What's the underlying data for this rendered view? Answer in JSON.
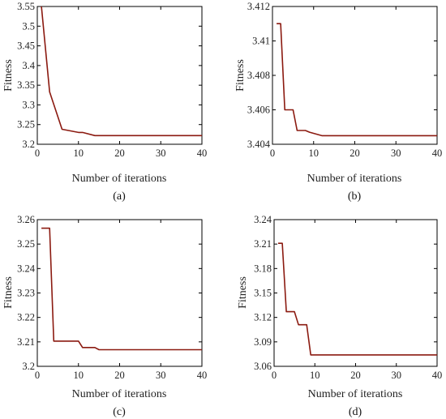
{
  "chart_data": [
    {
      "type": "line",
      "panel_label": "(a)",
      "xlabel": "Number of iterations",
      "ylabel": "Fitness",
      "xlim": [
        0,
        40
      ],
      "ylim": [
        3.2,
        3.55
      ],
      "xticks": [
        0,
        10,
        20,
        30,
        40
      ],
      "xtick_labels": [
        "0",
        "10",
        "20",
        "30",
        "40"
      ],
      "yticks": [
        3.2,
        3.25,
        3.3,
        3.35,
        3.4,
        3.45,
        3.5,
        3.55
      ],
      "ytick_labels": [
        "3.2",
        "3.25",
        "3.3",
        "3.35",
        "3.4",
        "3.45",
        "3.5",
        "3.55"
      ],
      "series": [
        {
          "color": "#8b1a10",
          "x": [
            1,
            3,
            6,
            10,
            11,
            14,
            40
          ],
          "y": [
            3.55,
            3.333,
            3.238,
            3.23,
            3.23,
            3.222,
            3.222
          ]
        }
      ]
    },
    {
      "type": "line",
      "panel_label": "(b)",
      "xlabel": "Number of iterations",
      "ylabel": "Fitness",
      "xlim": [
        0,
        40
      ],
      "ylim": [
        3.404,
        3.412
      ],
      "xticks": [
        0,
        10,
        20,
        30,
        40
      ],
      "xtick_labels": [
        "0",
        "10",
        "20",
        "30",
        "40"
      ],
      "yticks": [
        3.404,
        3.406,
        3.408,
        3.41,
        3.412
      ],
      "ytick_labels": [
        "3.404",
        "3.406",
        "3.408",
        "3.41",
        "3.412"
      ],
      "series": [
        {
          "color": "#8b1a10",
          "x": [
            1,
            2,
            3,
            5,
            6,
            8,
            9,
            12,
            40
          ],
          "y": [
            3.411,
            3.411,
            3.406,
            3.406,
            3.4048,
            3.4048,
            3.4047,
            3.4045,
            3.4045
          ]
        }
      ]
    },
    {
      "type": "line",
      "panel_label": "(c)",
      "xlabel": "Number of iterations",
      "ylabel": "Fitness",
      "xlim": [
        0,
        40
      ],
      "ylim": [
        3.2,
        3.26
      ],
      "xticks": [
        0,
        10,
        20,
        30,
        40
      ],
      "xtick_labels": [
        "0",
        "10",
        "20",
        "30",
        "40"
      ],
      "yticks": [
        3.2,
        3.21,
        3.22,
        3.23,
        3.24,
        3.25,
        3.26
      ],
      "ytick_labels": [
        "3.2",
        "3.21",
        "3.22",
        "3.23",
        "3.24",
        "3.25",
        "3.26"
      ],
      "series": [
        {
          "color": "#8b1a10",
          "x": [
            1,
            3,
            4,
            10,
            11,
            14,
            15,
            40
          ],
          "y": [
            3.2565,
            3.2565,
            3.2103,
            3.2103,
            3.2077,
            3.2077,
            3.2068,
            3.2068
          ]
        }
      ]
    },
    {
      "type": "line",
      "panel_label": "(d)",
      "xlabel": "Number of iterations",
      "ylabel": "Fitness",
      "xlim": [
        0,
        40
      ],
      "ylim": [
        3.06,
        3.24
      ],
      "xticks": [
        0,
        10,
        20,
        30,
        40
      ],
      "xtick_labels": [
        "0",
        "10",
        "20",
        "30",
        "40"
      ],
      "yticks": [
        3.06,
        3.09,
        3.12,
        3.15,
        3.18,
        3.21,
        3.24
      ],
      "ytick_labels": [
        "3.06",
        "3.09",
        "3.12",
        "3.15",
        "3.18",
        "3.21",
        "3.24"
      ],
      "series": [
        {
          "color": "#8b1a10",
          "x": [
            1,
            2,
            3,
            5,
            6,
            8,
            9,
            40
          ],
          "y": [
            3.211,
            3.211,
            3.127,
            3.127,
            3.111,
            3.111,
            3.074,
            3.074
          ]
        }
      ]
    }
  ]
}
